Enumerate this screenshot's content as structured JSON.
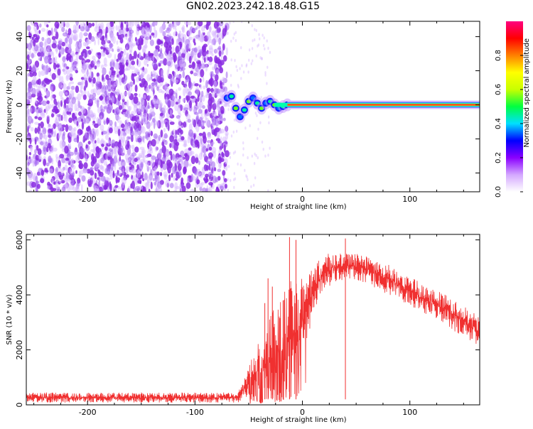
{
  "figure": {
    "title": "GN02.2023.242.18.48.G15"
  },
  "chart_data": [
    {
      "type": "heatmap",
      "panel": "spectrogram",
      "xlabel": "Height of straight line (km)",
      "ylabel": "Frequency (Hz)",
      "xlim": [
        -257,
        165
      ],
      "ylim": [
        -51,
        49
      ],
      "xticks": [
        -200,
        -100,
        0,
        100
      ],
      "yticks": [
        -40,
        -20,
        0,
        20,
        40
      ],
      "noise_region_x": [
        -257,
        -70
      ],
      "signal": {
        "x_start": -70,
        "x_end": 165,
        "freq_center": 0,
        "onset_track": [
          {
            "x": -70,
            "f": 4
          },
          {
            "x": -66,
            "f": 5
          },
          {
            "x": -62,
            "f": -2
          },
          {
            "x": -58,
            "f": -7
          },
          {
            "x": -54,
            "f": -3
          },
          {
            "x": -50,
            "f": 2
          },
          {
            "x": -46,
            "f": 4
          },
          {
            "x": -42,
            "f": 1
          },
          {
            "x": -38,
            "f": -2
          },
          {
            "x": -34,
            "f": 1
          },
          {
            "x": -30,
            "f": 2
          },
          {
            "x": -26,
            "f": 0
          },
          {
            "x": -22,
            "f": -2
          },
          {
            "x": -18,
            "f": -1
          },
          {
            "x": -14,
            "f": 0
          }
        ]
      },
      "colorbar": {
        "label": "Normalized spectral amplitude",
        "range": [
          0,
          1
        ],
        "ticks": [
          0.0,
          0.2,
          0.4,
          0.6,
          0.8
        ],
        "tick_labels": [
          "0.0",
          "0.2",
          "0.4",
          "0.6",
          "0.8"
        ],
        "colors": [
          "#ffffff",
          "#d4a8ff",
          "#8a00ff",
          "#0000ff",
          "#00e0ff",
          "#00ff40",
          "#c8ff00",
          "#ffff00",
          "#ff8000",
          "#ff0000",
          "#ff0080"
        ]
      },
      "colors": {
        "noise": "#8a2be2",
        "noise_light": "#d8b8ff",
        "ridge_core": "#ff2020",
        "ridge_edge": "#00d0ff"
      }
    },
    {
      "type": "line",
      "panel": "snr",
      "xlabel": "Height of straight line (km)",
      "ylabel": "SNR (10 * v/v)",
      "xlim": [
        -257,
        165
      ],
      "ylim": [
        0,
        6200
      ],
      "xticks": [
        -200,
        -100,
        0,
        100
      ],
      "yticks": [
        0,
        2000,
        4000,
        6000
      ],
      "series_color": "#f03030",
      "profile": [
        {
          "x": -257,
          "lo": 80,
          "hi": 450
        },
        {
          "x": -60,
          "lo": 80,
          "hi": 450
        },
        {
          "x": -50,
          "lo": 120,
          "hi": 1400
        },
        {
          "x": -40,
          "lo": 100,
          "hi": 2400
        },
        {
          "x": -30,
          "lo": 150,
          "hi": 3300
        },
        {
          "x": -20,
          "lo": 300,
          "hi": 3900
        },
        {
          "x": -10,
          "lo": 500,
          "hi": 4600
        },
        {
          "x": 0,
          "lo": 1500,
          "hi": 4700
        },
        {
          "x": 10,
          "lo": 3300,
          "hi": 5000
        },
        {
          "x": 20,
          "lo": 4200,
          "hi": 5500
        },
        {
          "x": 40,
          "lo": 4600,
          "hi": 5600
        },
        {
          "x": 60,
          "lo": 4400,
          "hi": 5400
        },
        {
          "x": 80,
          "lo": 4000,
          "hi": 5100
        },
        {
          "x": 100,
          "lo": 3600,
          "hi": 4700
        },
        {
          "x": 120,
          "lo": 3200,
          "hi": 4300
        },
        {
          "x": 140,
          "lo": 2700,
          "hi": 3900
        },
        {
          "x": 165,
          "lo": 2100,
          "hi": 3200
        }
      ],
      "spikes": [
        {
          "x": -35,
          "y": 3700
        },
        {
          "x": -32,
          "y": 4600
        },
        {
          "x": -28,
          "y": 4300
        },
        {
          "x": -18,
          "y": 3800
        },
        {
          "x": -12,
          "y": 6100
        },
        {
          "x": -6,
          "y": 6000
        },
        {
          "x": 40,
          "y": 6050
        }
      ]
    }
  ]
}
